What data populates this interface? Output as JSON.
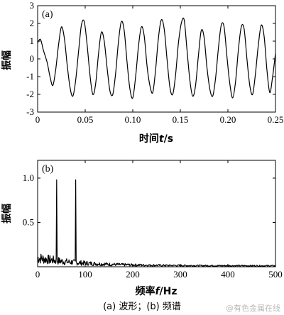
{
  "chart_data": [
    {
      "type": "line",
      "panel_label": "(a)",
      "xlabel_cn": "时间",
      "xlabel_var": "t",
      "xlabel_unit": "/s",
      "ylabel": "振幅",
      "xlim": [
        0,
        0.25
      ],
      "ylim": [
        -3,
        3
      ],
      "xticks": [
        "0",
        "0.05",
        "0.10",
        "0.15",
        "0.20",
        "0.25"
      ],
      "xtick_values": [
        0,
        0.05,
        0.1,
        0.15,
        0.2,
        0.25
      ],
      "yticks": [
        "-3",
        "-2",
        "-1",
        "0",
        "1",
        "2",
        "3"
      ],
      "ytick_values": [
        -3,
        -2,
        -1,
        0,
        1,
        2,
        3
      ],
      "grid": false,
      "x": [
        0,
        0.003,
        0.006,
        0.01,
        0.013,
        0.016,
        0.019,
        0.022,
        0.025,
        0.028,
        0.031,
        0.034,
        0.037,
        0.04,
        0.043,
        0.046,
        0.049,
        0.052,
        0.055,
        0.058,
        0.061,
        0.064,
        0.067,
        0.07,
        0.073,
        0.076,
        0.079,
        0.082,
        0.085,
        0.088,
        0.091,
        0.094,
        0.097,
        0.1,
        0.103,
        0.106,
        0.109,
        0.112,
        0.115,
        0.118,
        0.121,
        0.124,
        0.127,
        0.13,
        0.133,
        0.136,
        0.139,
        0.142,
        0.145,
        0.148,
        0.151,
        0.154,
        0.157,
        0.16,
        0.163,
        0.166,
        0.169,
        0.172,
        0.175,
        0.178,
        0.181,
        0.184,
        0.187,
        0.19,
        0.193,
        0.196,
        0.199,
        0.202,
        0.205,
        0.208,
        0.211,
        0.214,
        0.217,
        0.22,
        0.223,
        0.226,
        0.229,
        0.232,
        0.235,
        0.238,
        0.241,
        0.244,
        0.247,
        0.25
      ],
      "y": [
        0.9,
        1.1,
        0.5,
        -0.2,
        -1.0,
        -1.5,
        -0.6,
        0.8,
        1.8,
        1.2,
        -0.3,
        -1.6,
        -2.1,
        -1.2,
        0.4,
        1.9,
        2.1,
        0.8,
        -0.9,
        -2.0,
        -1.4,
        0.3,
        1.5,
        1.0,
        -0.5,
        -1.8,
        -2.0,
        -0.8,
        1.0,
        2.1,
        1.6,
        -0.2,
        -1.7,
        -2.2,
        -1.0,
        0.7,
        1.8,
        1.3,
        -0.4,
        -1.5,
        -1.9,
        -0.6,
        1.2,
        2.2,
        1.7,
        0.0,
        -1.6,
        -2.0,
        -0.9,
        0.9,
        2.0,
        2.2,
        0.5,
        -1.2,
        -2.1,
        -1.5,
        0.2,
        1.6,
        1.2,
        -0.5,
        -1.7,
        -2.1,
        -1.1,
        0.6,
        1.9,
        1.8,
        0.1,
        -1.4,
        -2.2,
        -1.3,
        0.5,
        1.8,
        1.7,
        0.0,
        -1.5,
        -2.0,
        -0.8,
        0.8,
        1.9,
        1.3,
        -0.6,
        -1.9,
        -1.0,
        0.3
      ]
    },
    {
      "type": "line",
      "panel_label": "(b)",
      "xlabel_cn": "频率",
      "xlabel_var": "f",
      "xlabel_unit": "/Hz",
      "ylabel": "振幅",
      "xlim": [
        0,
        500
      ],
      "ylim": [
        0,
        1.2
      ],
      "xticks": [
        "0",
        "100",
        "200",
        "300",
        "400",
        "500"
      ],
      "xtick_values": [
        0,
        100,
        200,
        300,
        400,
        500
      ],
      "yticks": [
        "0.5",
        "1.0"
      ],
      "ytick_values": [
        0.5,
        1.0
      ],
      "grid": false,
      "peaks": [
        {
          "x": 40,
          "y": 0.98
        },
        {
          "x": 80,
          "y": 0.98
        }
      ]
    }
  ],
  "caption": "(a) 波形；(b) 频谱",
  "watermark": "@有色金属在线"
}
